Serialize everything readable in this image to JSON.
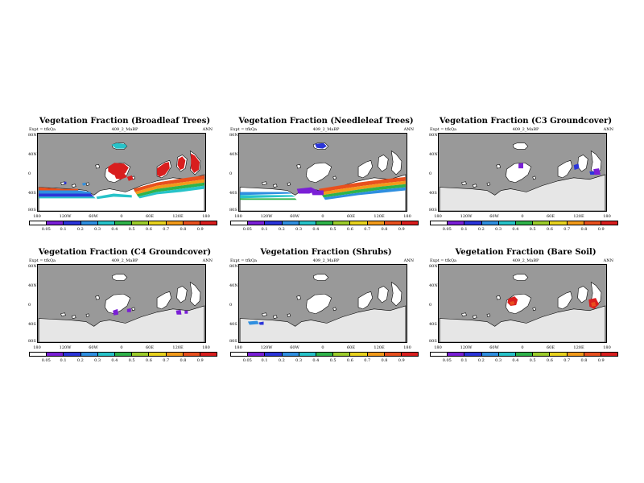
{
  "figure": {
    "panels": [
      {
        "title": "Vegetation Fraction (Broadleaf Trees)",
        "expt": "Expt = tfkQa",
        "run": "409_2_MaBP",
        "period": "ANN",
        "variant": "broadleaf"
      },
      {
        "title": "Vegetation Fraction (Needleleaf Trees)",
        "expt": "Expt = tfkQa",
        "run": "409_2_MaBP",
        "period": "ANN",
        "variant": "needleleaf"
      },
      {
        "title": "Vegetation Fraction (C3 Groundcover)",
        "expt": "Expt = tfkQa",
        "run": "409_2_MaBP",
        "period": "ANN",
        "variant": "c3"
      },
      {
        "title": "Vegetation Fraction (C4 Groundcover)",
        "expt": "Expt = tfkQa",
        "run": "409_2_MaBP",
        "period": "ANN",
        "variant": "c4"
      },
      {
        "title": "Vegetation Fraction (Shrubs)",
        "expt": "Expt = tfkQa",
        "run": "409_2_MaBP",
        "period": "ANN",
        "variant": "shrubs"
      },
      {
        "title": "Vegetation Fraction (Bare Soil)",
        "expt": "Expt = tfkQa",
        "run": "409_2_MaBP",
        "period": "ANN",
        "variant": "bare"
      }
    ],
    "lat_ticks": [
      "80N",
      "40N",
      "0",
      "40S",
      "80S"
    ],
    "lon_ticks": [
      "180",
      "120W",
      "60W",
      "0",
      "60E",
      "120E",
      "180"
    ],
    "colorbar": {
      "labels": [
        "0.05",
        "0.1",
        "0.2",
        "0.3",
        "0.4",
        "0.5",
        "0.6",
        "0.7",
        "0.8",
        "0.9"
      ],
      "colors": [
        "#ffffff",
        "#7a1fd6",
        "#2b35d9",
        "#2f8fe0",
        "#27c3c9",
        "#2fb34a",
        "#9ccc2b",
        "#e8d21e",
        "#f29a1a",
        "#e8501e",
        "#d91e1e"
      ]
    },
    "map_colors": {
      "ocean": "#999999",
      "land_zero": "#ffffff",
      "bare_ice": "#e6e6e6"
    }
  }
}
